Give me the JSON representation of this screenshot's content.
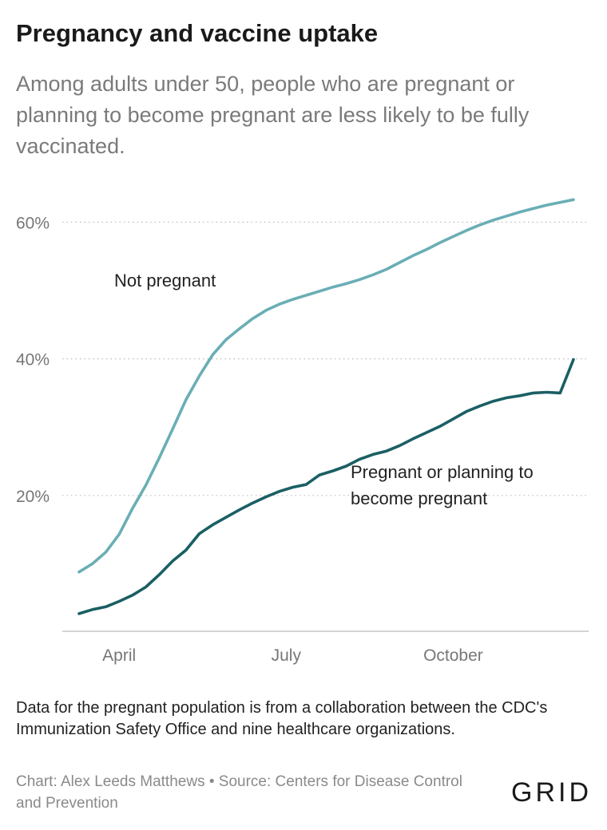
{
  "header": {
    "title": "Pregnancy and vaccine uptake",
    "subtitle": "Among adults under 50, people who are pregnant or planning to become pregnant are less likely to be fully vaccinated."
  },
  "chart_data": {
    "type": "line",
    "x_unit": "week",
    "x_start": 1,
    "x_end": 38,
    "x_ticks": [
      {
        "x": 4,
        "label": "April"
      },
      {
        "x": 16.5,
        "label": "July"
      },
      {
        "x": 29,
        "label": "October"
      }
    ],
    "y_ticks": [
      {
        "value": 20,
        "label": "20%"
      },
      {
        "value": 40,
        "label": "40%"
      },
      {
        "value": 60,
        "label": "60%"
      }
    ],
    "ylim": [
      0,
      63
    ],
    "grid": true,
    "series": [
      {
        "name": "Not pregnant",
        "color": "#6aaeb5",
        "x": [
          1,
          2,
          3,
          4,
          5,
          6,
          7,
          8,
          9,
          10,
          11,
          12,
          13,
          14,
          15,
          16,
          17,
          18,
          19,
          20,
          21,
          22,
          23,
          24,
          25,
          26,
          27,
          28,
          29,
          30,
          31,
          32,
          33,
          34,
          35,
          36,
          37,
          38
        ],
        "values": [
          8.8,
          10,
          11.7,
          14.3,
          18.1,
          21.5,
          25.5,
          29.7,
          34,
          37.5,
          40.6,
          42.8,
          44.4,
          45.9,
          47.1,
          48,
          48.7,
          49.3,
          49.9,
          50.5,
          51,
          51.6,
          52.3,
          53.1,
          54.1,
          55.1,
          56,
          57,
          57.9,
          58.8,
          59.6,
          60.3,
          60.9,
          61.5,
          62,
          62.5,
          62.9,
          63.3
        ],
        "label": "Not pregnant"
      },
      {
        "name": "Pregnant or planning to become pregnant",
        "color": "#1a5f64",
        "x": [
          1,
          2,
          3,
          4,
          5,
          6,
          7,
          8,
          9,
          10,
          11,
          12,
          13,
          14,
          15,
          16,
          17,
          18,
          19,
          20,
          21,
          22,
          23,
          24,
          25,
          26,
          27,
          28,
          29,
          30,
          31,
          32,
          33,
          34,
          35,
          36,
          37,
          38
        ],
        "values": [
          2.7,
          3.3,
          3.7,
          4.5,
          5.4,
          6.6,
          8.4,
          10.4,
          12,
          14.4,
          15.7,
          16.8,
          17.9,
          18.9,
          19.8,
          20.6,
          21.2,
          21.6,
          23,
          23.6,
          24.3,
          25.3,
          26,
          26.5,
          27.3,
          28.3,
          29.2,
          30.1,
          31.2,
          32.3,
          33.1,
          33.8,
          34.3,
          34.6,
          35,
          35.1,
          35,
          39.9
        ],
        "label": "Pregnant or planning to become pregnant"
      }
    ],
    "annotations": {
      "not_pregnant": "Not pregnant",
      "pregnant_line1": "Pregnant or planning to",
      "pregnant_line2": "become pregnant"
    }
  },
  "footer": {
    "note": "Data for the pregnant population is from a collaboration between the CDC's Immunization Safety Office and nine healthcare organizations.",
    "credits": "Chart: Alex Leeds Matthews • Source: Centers for Disease Control and Prevention",
    "logo": "GRID"
  }
}
